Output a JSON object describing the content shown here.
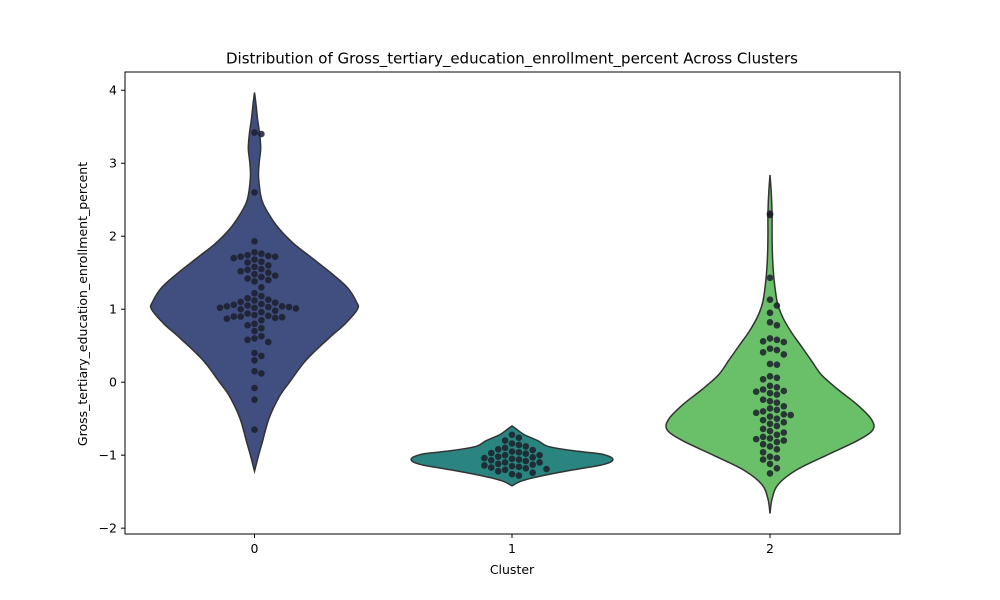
{
  "chart_data": {
    "type": "violin",
    "title": "Distribution of Gross_tertiary_education_enrollment_percent Across Clusters",
    "xlabel": "Cluster",
    "ylabel": "Gross_tertiary_education_enrollment_percent",
    "categories": [
      "0",
      "1",
      "2"
    ],
    "ylim": [
      -2.08,
      4.25
    ],
    "yticks": [
      -2,
      -1,
      0,
      1,
      2,
      3,
      4
    ],
    "grid": false,
    "colors": [
      "#414e80",
      "#2a8580",
      "#6abf69"
    ],
    "violins": [
      {
        "category": "0",
        "shape": [
          [
            -1.22,
            0.0
          ],
          [
            -1.0,
            0.04
          ],
          [
            -0.8,
            0.08
          ],
          [
            -0.5,
            0.14
          ],
          [
            -0.2,
            0.24
          ],
          [
            0.0,
            0.34
          ],
          [
            0.3,
            0.5
          ],
          [
            0.6,
            0.72
          ],
          [
            0.8,
            0.88
          ],
          [
            1.0,
            1.0
          ],
          [
            1.1,
            0.99
          ],
          [
            1.3,
            0.9
          ],
          [
            1.5,
            0.74
          ],
          [
            1.7,
            0.56
          ],
          [
            1.9,
            0.38
          ],
          [
            2.1,
            0.24
          ],
          [
            2.3,
            0.14
          ],
          [
            2.5,
            0.07
          ],
          [
            2.8,
            0.04
          ],
          [
            3.0,
            0.045
          ],
          [
            3.2,
            0.06
          ],
          [
            3.4,
            0.05
          ],
          [
            3.6,
            0.03
          ],
          [
            3.8,
            0.015
          ],
          [
            3.97,
            0.0
          ]
        ],
        "points": [
          3.42,
          3.4,
          2.6,
          1.93,
          1.78,
          1.76,
          1.74,
          1.73,
          1.72,
          1.72,
          1.7,
          1.68,
          1.65,
          1.64,
          1.6,
          1.58,
          1.55,
          1.54,
          1.52,
          1.5,
          1.48,
          1.46,
          1.44,
          1.42,
          1.4,
          1.38,
          1.3,
          1.22,
          1.18,
          1.15,
          1.13,
          1.12,
          1.1,
          1.09,
          1.07,
          1.06,
          1.05,
          1.04,
          1.04,
          1.03,
          1.03,
          1.02,
          1.02,
          1.01,
          1.0,
          0.98,
          0.96,
          0.94,
          0.92,
          0.91,
          0.9,
          0.9,
          0.89,
          0.88,
          0.87,
          0.85,
          0.8,
          0.78,
          0.74,
          0.7,
          0.63,
          0.6,
          0.58,
          0.55,
          0.4,
          0.36,
          0.3,
          0.15,
          0.12,
          -0.08,
          -0.24,
          -0.65
        ]
      },
      {
        "category": "1",
        "shape": [
          [
            -1.42,
            0.0
          ],
          [
            -1.35,
            0.1
          ],
          [
            -1.28,
            0.3
          ],
          [
            -1.2,
            0.6
          ],
          [
            -1.14,
            0.85
          ],
          [
            -1.1,
            0.95
          ],
          [
            -1.06,
            0.98
          ],
          [
            -1.02,
            0.95
          ],
          [
            -0.98,
            0.85
          ],
          [
            -0.94,
            0.6
          ],
          [
            -0.88,
            0.35
          ],
          [
            -0.8,
            0.25
          ],
          [
            -0.72,
            0.12
          ],
          [
            -0.64,
            0.04
          ],
          [
            -0.6,
            0.0
          ]
        ],
        "points": [
          -0.72,
          -0.76,
          -0.8,
          -0.84,
          -0.86,
          -0.88,
          -0.9,
          -0.92,
          -0.93,
          -0.95,
          -0.96,
          -0.97,
          -0.98,
          -1.0,
          -1.0,
          -1.02,
          -1.03,
          -1.04,
          -1.05,
          -1.06,
          -1.07,
          -1.08,
          -1.1,
          -1.1,
          -1.12,
          -1.13,
          -1.14,
          -1.15,
          -1.16,
          -1.17,
          -1.18,
          -1.19,
          -1.2,
          -1.22,
          -1.24,
          -1.26,
          -1.28
        ]
      },
      {
        "category": "2",
        "shape": [
          [
            -1.8,
            0.0
          ],
          [
            -1.6,
            0.02
          ],
          [
            -1.4,
            0.08
          ],
          [
            -1.2,
            0.26
          ],
          [
            -1.0,
            0.55
          ],
          [
            -0.8,
            0.85
          ],
          [
            -0.65,
            1.0
          ],
          [
            -0.5,
            0.98
          ],
          [
            -0.3,
            0.84
          ],
          [
            -0.1,
            0.66
          ],
          [
            0.1,
            0.5
          ],
          [
            0.3,
            0.4
          ],
          [
            0.5,
            0.3
          ],
          [
            0.7,
            0.2
          ],
          [
            0.9,
            0.12
          ],
          [
            1.1,
            0.07
          ],
          [
            1.4,
            0.04
          ],
          [
            1.7,
            0.025
          ],
          [
            2.0,
            0.02
          ],
          [
            2.3,
            0.02
          ],
          [
            2.6,
            0.012
          ],
          [
            2.84,
            0.0
          ]
        ],
        "points": [
          2.31,
          2.29,
          1.43,
          1.13,
          1.05,
          0.95,
          0.82,
          0.78,
          0.6,
          0.58,
          0.56,
          0.55,
          0.46,
          0.44,
          0.41,
          0.38,
          0.25,
          0.24,
          0.08,
          0.06,
          0.04,
          -0.05,
          -0.07,
          -0.1,
          -0.12,
          -0.13,
          -0.15,
          -0.17,
          -0.24,
          -0.26,
          -0.28,
          -0.33,
          -0.36,
          -0.38,
          -0.4,
          -0.42,
          -0.44,
          -0.45,
          -0.47,
          -0.5,
          -0.52,
          -0.55,
          -0.57,
          -0.6,
          -0.64,
          -0.67,
          -0.69,
          -0.72,
          -0.75,
          -0.77,
          -0.78,
          -0.8,
          -0.82,
          -0.85,
          -0.88,
          -0.92,
          -0.96,
          -1.02,
          -1.04,
          -1.06,
          -1.12,
          -1.18,
          -1.25
        ]
      }
    ]
  }
}
